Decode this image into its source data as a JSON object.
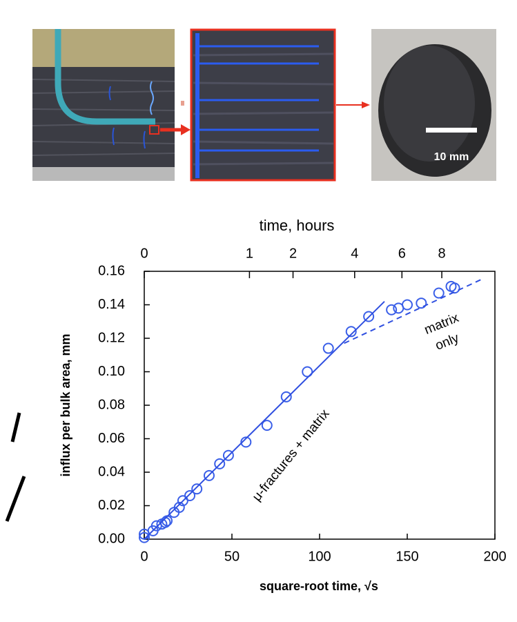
{
  "chart_data": {
    "type": "scatter",
    "top_axis_title": "time,   hours",
    "xlabel": "square-root time, √s",
    "ylabel": "influx per bulk area,  mm",
    "inset_label": "10 mm",
    "annotations": [
      "μ-fractures + matrix",
      "matrix",
      "only"
    ],
    "xlim": [
      0,
      200
    ],
    "ylim": [
      0,
      0.16
    ],
    "xticks": [
      0,
      50,
      100,
      150,
      200
    ],
    "x2ticks": [
      {
        "value": 0,
        "label": "0"
      },
      {
        "value": 60,
        "label": "1"
      },
      {
        "value": 84.85,
        "label": "2"
      },
      {
        "value": 120,
        "label": "4"
      },
      {
        "value": 146.97,
        "label": "6"
      },
      {
        "value": 169.71,
        "label": "8"
      }
    ],
    "yticks": [
      {
        "value": 0,
        "label": "0.00"
      },
      {
        "value": 0.02,
        "label": "0.02"
      },
      {
        "value": 0.04,
        "label": "0.04"
      },
      {
        "value": 0.06,
        "label": "0.06"
      },
      {
        "value": 0.08,
        "label": "0.08"
      },
      {
        "value": 0.1,
        "label": "0.10"
      },
      {
        "value": 0.12,
        "label": "0.12"
      },
      {
        "value": 0.14,
        "label": "0.14"
      },
      {
        "value": 0.16,
        "label": "0.16"
      }
    ],
    "series": [
      {
        "type": "scatter",
        "color": "#3a5fe8",
        "x": [
          0,
          0,
          5,
          7,
          10,
          12,
          13,
          17,
          20,
          22,
          26,
          30,
          37,
          43,
          48,
          58,
          70,
          81,
          93,
          105,
          118,
          128,
          141,
          145,
          150,
          158,
          168,
          175,
          177
        ],
        "values": [
          0.001,
          0.003,
          0.005,
          0.008,
          0.009,
          0.01,
          0.011,
          0.016,
          0.019,
          0.023,
          0.026,
          0.03,
          0.038,
          0.045,
          0.05,
          0.058,
          0.068,
          0.085,
          0.1,
          0.114,
          0.124,
          0.133,
          0.137,
          0.138,
          0.14,
          0.141,
          0.147,
          0.151,
          0.15
        ]
      },
      {
        "type": "line",
        "color": "#2f4fe0",
        "dashed": false,
        "x": [
          0,
          137
        ],
        "values": [
          0,
          0.142
        ]
      },
      {
        "type": "line",
        "color": "#2f4fe0",
        "dashed": true,
        "x": [
          114,
          192
        ],
        "values": [
          0.117,
          0.155
        ]
      }
    ]
  }
}
